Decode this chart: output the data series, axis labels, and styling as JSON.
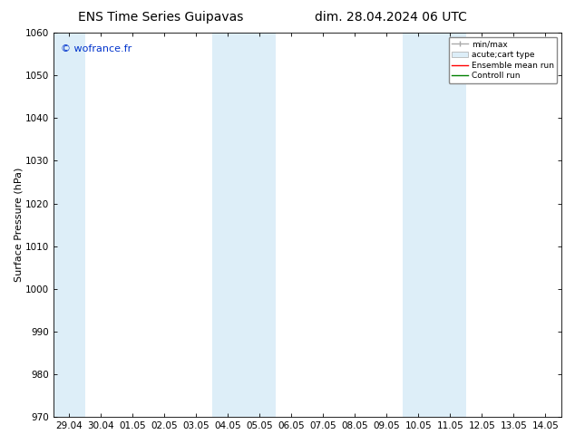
{
  "title_left": "ENS Time Series Guipavas",
  "title_right": "dim. 28.04.2024 06 UTC",
  "ylabel": "Surface Pressure (hPa)",
  "ylim": [
    970,
    1060
  ],
  "yticks": [
    970,
    980,
    990,
    1000,
    1010,
    1020,
    1030,
    1040,
    1050,
    1060
  ],
  "xtick_labels": [
    "29.04",
    "30.04",
    "01.05",
    "02.05",
    "03.05",
    "04.05",
    "05.05",
    "06.05",
    "07.05",
    "08.05",
    "09.05",
    "10.05",
    "11.05",
    "12.05",
    "13.05",
    "14.05"
  ],
  "shaded_bands": [
    {
      "xstart": -0.5,
      "xend": 0.5,
      "color": "#ddeef8"
    },
    {
      "xstart": 4.5,
      "xend": 6.5,
      "color": "#ddeef8"
    },
    {
      "xstart": 10.5,
      "xend": 12.5,
      "color": "#ddeef8"
    }
  ],
  "watermark": "© wofrance.fr",
  "watermark_color": "#0033cc",
  "legend_items": [
    {
      "label": "min/max",
      "color": "#aaaaaa",
      "lw": 1.0
    },
    {
      "label": "acute;cart type",
      "facecolor": "#ddeef8",
      "edgecolor": "#aaaaaa"
    },
    {
      "label": "Ensemble mean run",
      "color": "red",
      "lw": 1.0
    },
    {
      "label": "Controll run",
      "color": "green",
      "lw": 1.0
    }
  ],
  "background_color": "#ffffff",
  "plot_bg_color": "#ffffff",
  "title_fontsize": 10,
  "axis_label_fontsize": 8,
  "tick_fontsize": 7.5,
  "legend_fontsize": 6.5,
  "watermark_fontsize": 8
}
